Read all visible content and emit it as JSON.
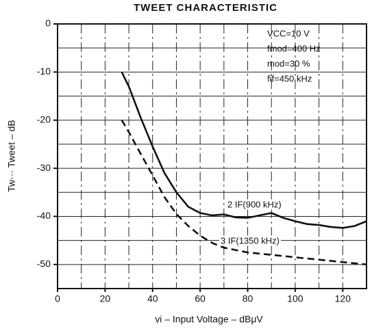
{
  "chart_data": {
    "type": "line",
    "title": "TWEET CHARACTERISTIC",
    "xlabel": "vi – Input Voltage – dBμV",
    "ylabel": "Tw··· Tweet – dB",
    "xlim": [
      0,
      130
    ],
    "ylim": [
      -55,
      0
    ],
    "xticks": [
      0,
      20,
      40,
      60,
      80,
      100,
      120
    ],
    "xgrid": [
      10,
      20,
      30,
      40,
      50,
      60,
      70,
      80,
      90,
      100,
      110,
      120
    ],
    "yticks": [
      0,
      -10,
      -20,
      -30,
      -40,
      -50
    ],
    "ygrid": [
      -5,
      -10,
      -15,
      -20,
      -25,
      -30,
      -35,
      -40,
      -45,
      -50
    ],
    "grid": true,
    "annotations": [
      "VCC=10 V",
      "fmod=400 Hz",
      "mod=30 %",
      "fif=450 kHz",
      "2 IF(900 kHz)",
      "3 IF(1350 kHz)"
    ],
    "series": [
      {
        "name": "2 IF",
        "color": "#111",
        "dash": false,
        "x": [
          27,
          30,
          35,
          40,
          45,
          50,
          55,
          60,
          65,
          70,
          75,
          80,
          85,
          90,
          95,
          100,
          105,
          110,
          115,
          120,
          125,
          130
        ],
        "values": [
          -10,
          -13,
          -19.5,
          -25.5,
          -31,
          -35,
          -38,
          -39.3,
          -39.8,
          -39.6,
          -40.2,
          -40.3,
          -39.8,
          -39.3,
          -40.3,
          -41,
          -41.6,
          -41.8,
          -42.2,
          -42.4,
          -42,
          -41
        ]
      },
      {
        "name": "3 IF",
        "color": "#111",
        "dash": true,
        "x": [
          27,
          30,
          35,
          40,
          45,
          50,
          55,
          60,
          65,
          70,
          80,
          90,
          100,
          110,
          120,
          130
        ],
        "values": [
          -20,
          -22.5,
          -27,
          -31.5,
          -36,
          -39.5,
          -42,
          -44,
          -45.5,
          -46.5,
          -47.5,
          -48,
          -48.5,
          -49,
          -49.5,
          -50
        ]
      }
    ]
  }
}
